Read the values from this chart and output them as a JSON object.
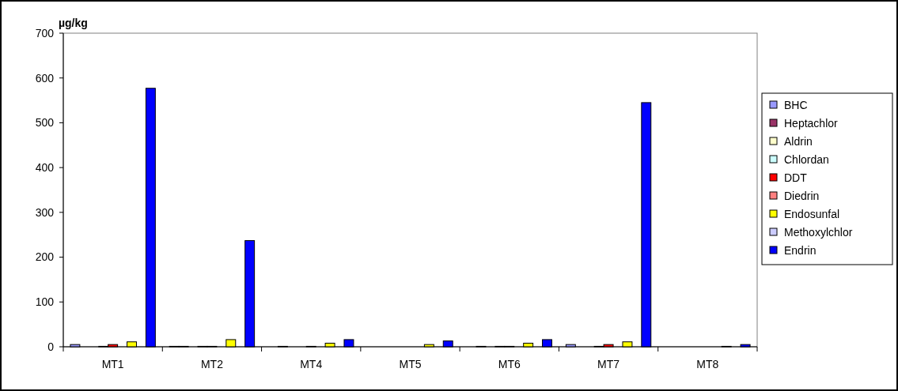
{
  "chart_data": {
    "type": "bar",
    "ylabel": "µg/kg",
    "categories": [
      "MT1",
      "MT2",
      "MT4",
      "MT5",
      "MT6",
      "MT7",
      "MT8"
    ],
    "ylim": [
      0,
      700
    ],
    "yticks": [
      0,
      100,
      200,
      300,
      400,
      500,
      600,
      700
    ],
    "grid": false,
    "legend": "right",
    "series": [
      {
        "name": "BHC",
        "color": "#9999ff",
        "values": [
          5,
          1,
          null,
          null,
          null,
          5,
          null
        ]
      },
      {
        "name": "Heptachlor",
        "color": "#993366",
        "values": [
          null,
          1,
          1,
          null,
          1,
          null,
          null
        ]
      },
      {
        "name": "Aldrin",
        "color": "#ffffcc",
        "values": [
          null,
          null,
          null,
          null,
          null,
          null,
          null
        ]
      },
      {
        "name": "Chlordan",
        "color": "#ccffff",
        "values": [
          1,
          1,
          null,
          null,
          1,
          1,
          null
        ]
      },
      {
        "name": "DDT",
        "color": "#ff0000",
        "values": [
          5,
          1,
          1,
          null,
          1,
          5,
          null
        ]
      },
      {
        "name": "Diedrin",
        "color": "#ff8080",
        "values": [
          null,
          null,
          null,
          null,
          null,
          null,
          null
        ]
      },
      {
        "name": "Endosunfal",
        "color": "#ffff00",
        "values": [
          11,
          16,
          8,
          5,
          8,
          11,
          1
        ]
      },
      {
        "name": "Methoxylchlor",
        "color": "#ccccff",
        "values": [
          null,
          null,
          null,
          null,
          null,
          null,
          null
        ]
      },
      {
        "name": "Endrin",
        "color": "#0000ff",
        "values": [
          577,
          237,
          16,
          13,
          16,
          545,
          5
        ]
      }
    ]
  }
}
